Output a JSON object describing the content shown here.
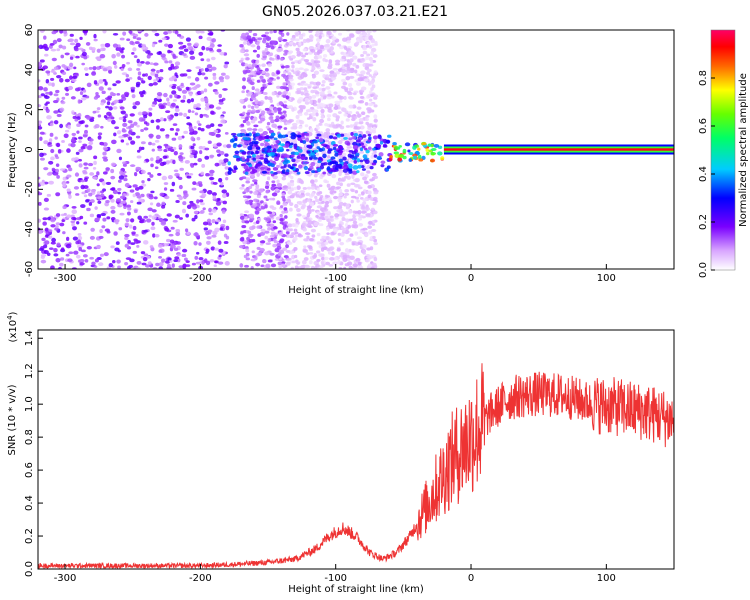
{
  "title": "GN05.2026.037.03.21.E21",
  "chart_data": [
    {
      "type": "heatmap",
      "xlabel": "Height of straight line (km)",
      "ylabel": "Frequency (Hz)",
      "xlim": [
        -320,
        150
      ],
      "ylim": [
        -60,
        60
      ],
      "x_ticks": [
        -300,
        -200,
        -100,
        0,
        100
      ],
      "x_tick_labels": [
        "-300",
        "-200",
        "-100",
        "0",
        "100"
      ],
      "y_ticks": [
        -60,
        -40,
        -20,
        0,
        20,
        40,
        60
      ],
      "y_tick_labels": [
        "-60",
        "-40",
        "-20",
        "0",
        "20",
        "40",
        "60"
      ],
      "grid": false,
      "colorbar": {
        "label": "Normalized spectral amplitude",
        "range": [
          0,
          1
        ],
        "ticks": [
          0.0,
          0.2,
          0.4,
          0.6,
          0.8
        ],
        "tick_labels": [
          "0.0",
          "0.2",
          "0.4",
          "0.6",
          "0.8"
        ],
        "colormap": "rainbow (white-violet-blue-cyan-green-yellow-red-magenta)"
      },
      "features": [
        {
          "x_range": [
            -320,
            -180
          ],
          "y_range": [
            -60,
            60
          ],
          "amplitude": 0.15,
          "description": "broadband scattered noise"
        },
        {
          "x_range": [
            -170,
            -135
          ],
          "y_range": [
            -60,
            60
          ],
          "amplitude": 0.12
        },
        {
          "x_range": [
            -135,
            -70
          ],
          "y_range": [
            -60,
            60
          ],
          "amplitude": 0.06
        },
        {
          "x_range": [
            -180,
            -60
          ],
          "y_range": [
            -12,
            8
          ],
          "amplitude": 0.3
        },
        {
          "x_range": [
            -60,
            -20
          ],
          "y_range": [
            -6,
            3
          ],
          "amplitude": 0.7
        },
        {
          "x_range": [
            -20,
            150
          ],
          "y_range": [
            -1,
            1
          ],
          "amplitude": 0.95,
          "description": "narrow line at ~0 Hz"
        }
      ]
    },
    {
      "type": "line",
      "xlabel": "Height of straight line (km)",
      "ylabel": "SNR (10 * v/v)",
      "y_multiplier": "(x10",
      "y_multiplier_exp": "4",
      "y_multiplier_close": ")",
      "xlim": [
        -320,
        150
      ],
      "ylim": [
        0,
        1.45
      ],
      "x_ticks": [
        -300,
        -200,
        -100,
        0,
        100
      ],
      "x_tick_labels": [
        "-300",
        "-200",
        "-100",
        "0",
        "100"
      ],
      "y_ticks": [
        0.0,
        0.2,
        0.4,
        0.6,
        0.8,
        1.0,
        1.2,
        1.4
      ],
      "y_tick_labels": [
        "0.0",
        "0.2",
        "0.4",
        "0.6",
        "0.8",
        "1.0",
        "1.2",
        "1.4"
      ],
      "grid": false,
      "series_color": "#ee3333",
      "x": [
        -320,
        -250,
        -200,
        -170,
        -150,
        -130,
        -115,
        -105,
        -95,
        -85,
        -75,
        -65,
        -55,
        -45,
        -35,
        -25,
        -15,
        -5,
        5,
        15,
        25,
        35,
        50,
        70,
        90,
        110,
        130,
        150
      ],
      "y": [
        0.02,
        0.02,
        0.02,
        0.03,
        0.04,
        0.06,
        0.12,
        0.2,
        0.25,
        0.2,
        0.1,
        0.06,
        0.1,
        0.2,
        0.35,
        0.5,
        0.65,
        0.75,
        0.85,
        0.95,
        1.02,
        1.05,
        1.06,
        1.05,
        1.0,
        0.98,
        0.95,
        0.9
      ]
    }
  ]
}
